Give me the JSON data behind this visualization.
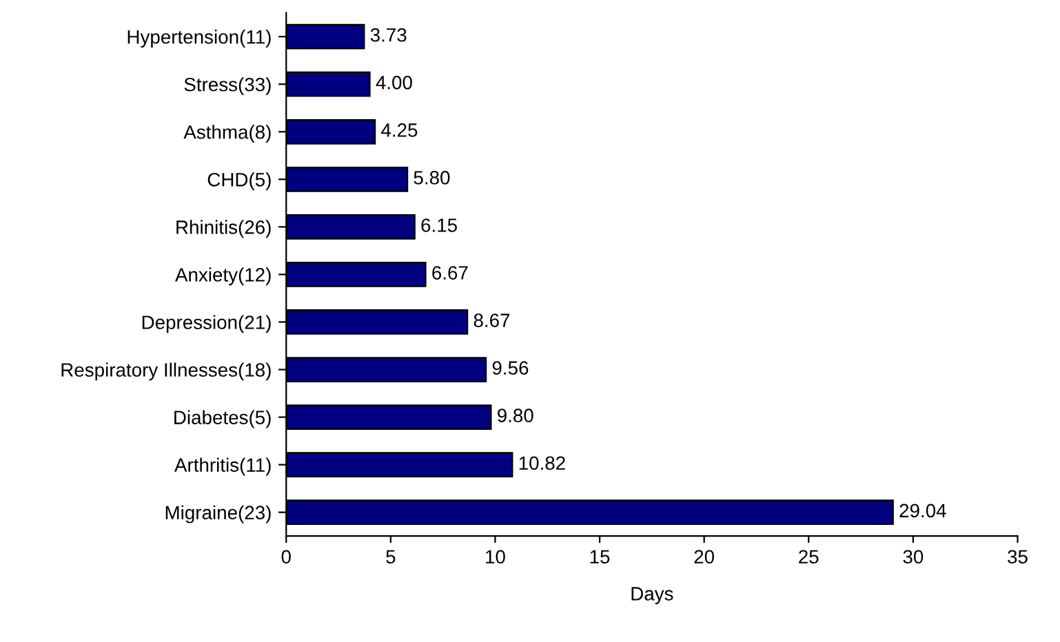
{
  "chart_data": {
    "type": "bar",
    "orientation": "horizontal",
    "xlabel": "Days",
    "categories": [
      "Hypertension(11)",
      "Stress(33)",
      "Asthma(8)",
      "CHD(5)",
      "Rhinitis(26)",
      "Anxiety(12)",
      "Depression(21)",
      "Respiratory Illnesses(18)",
      "Diabetes(5)",
      "Arthritis(11)",
      "Migraine(23)"
    ],
    "values": [
      3.73,
      4.0,
      4.25,
      5.8,
      6.15,
      6.67,
      8.67,
      9.56,
      9.8,
      10.82,
      29.04
    ],
    "value_labels": [
      "3.73",
      "4.00",
      "4.25",
      "5.80",
      "6.15",
      "6.67",
      "8.67",
      "9.56",
      "9.80",
      "10.82",
      "29.04"
    ],
    "color": "#000080",
    "xlim": [
      0,
      35
    ],
    "xticks": [
      0,
      5,
      10,
      15,
      20,
      25,
      30,
      35
    ],
    "grid": false,
    "legend": false
  }
}
